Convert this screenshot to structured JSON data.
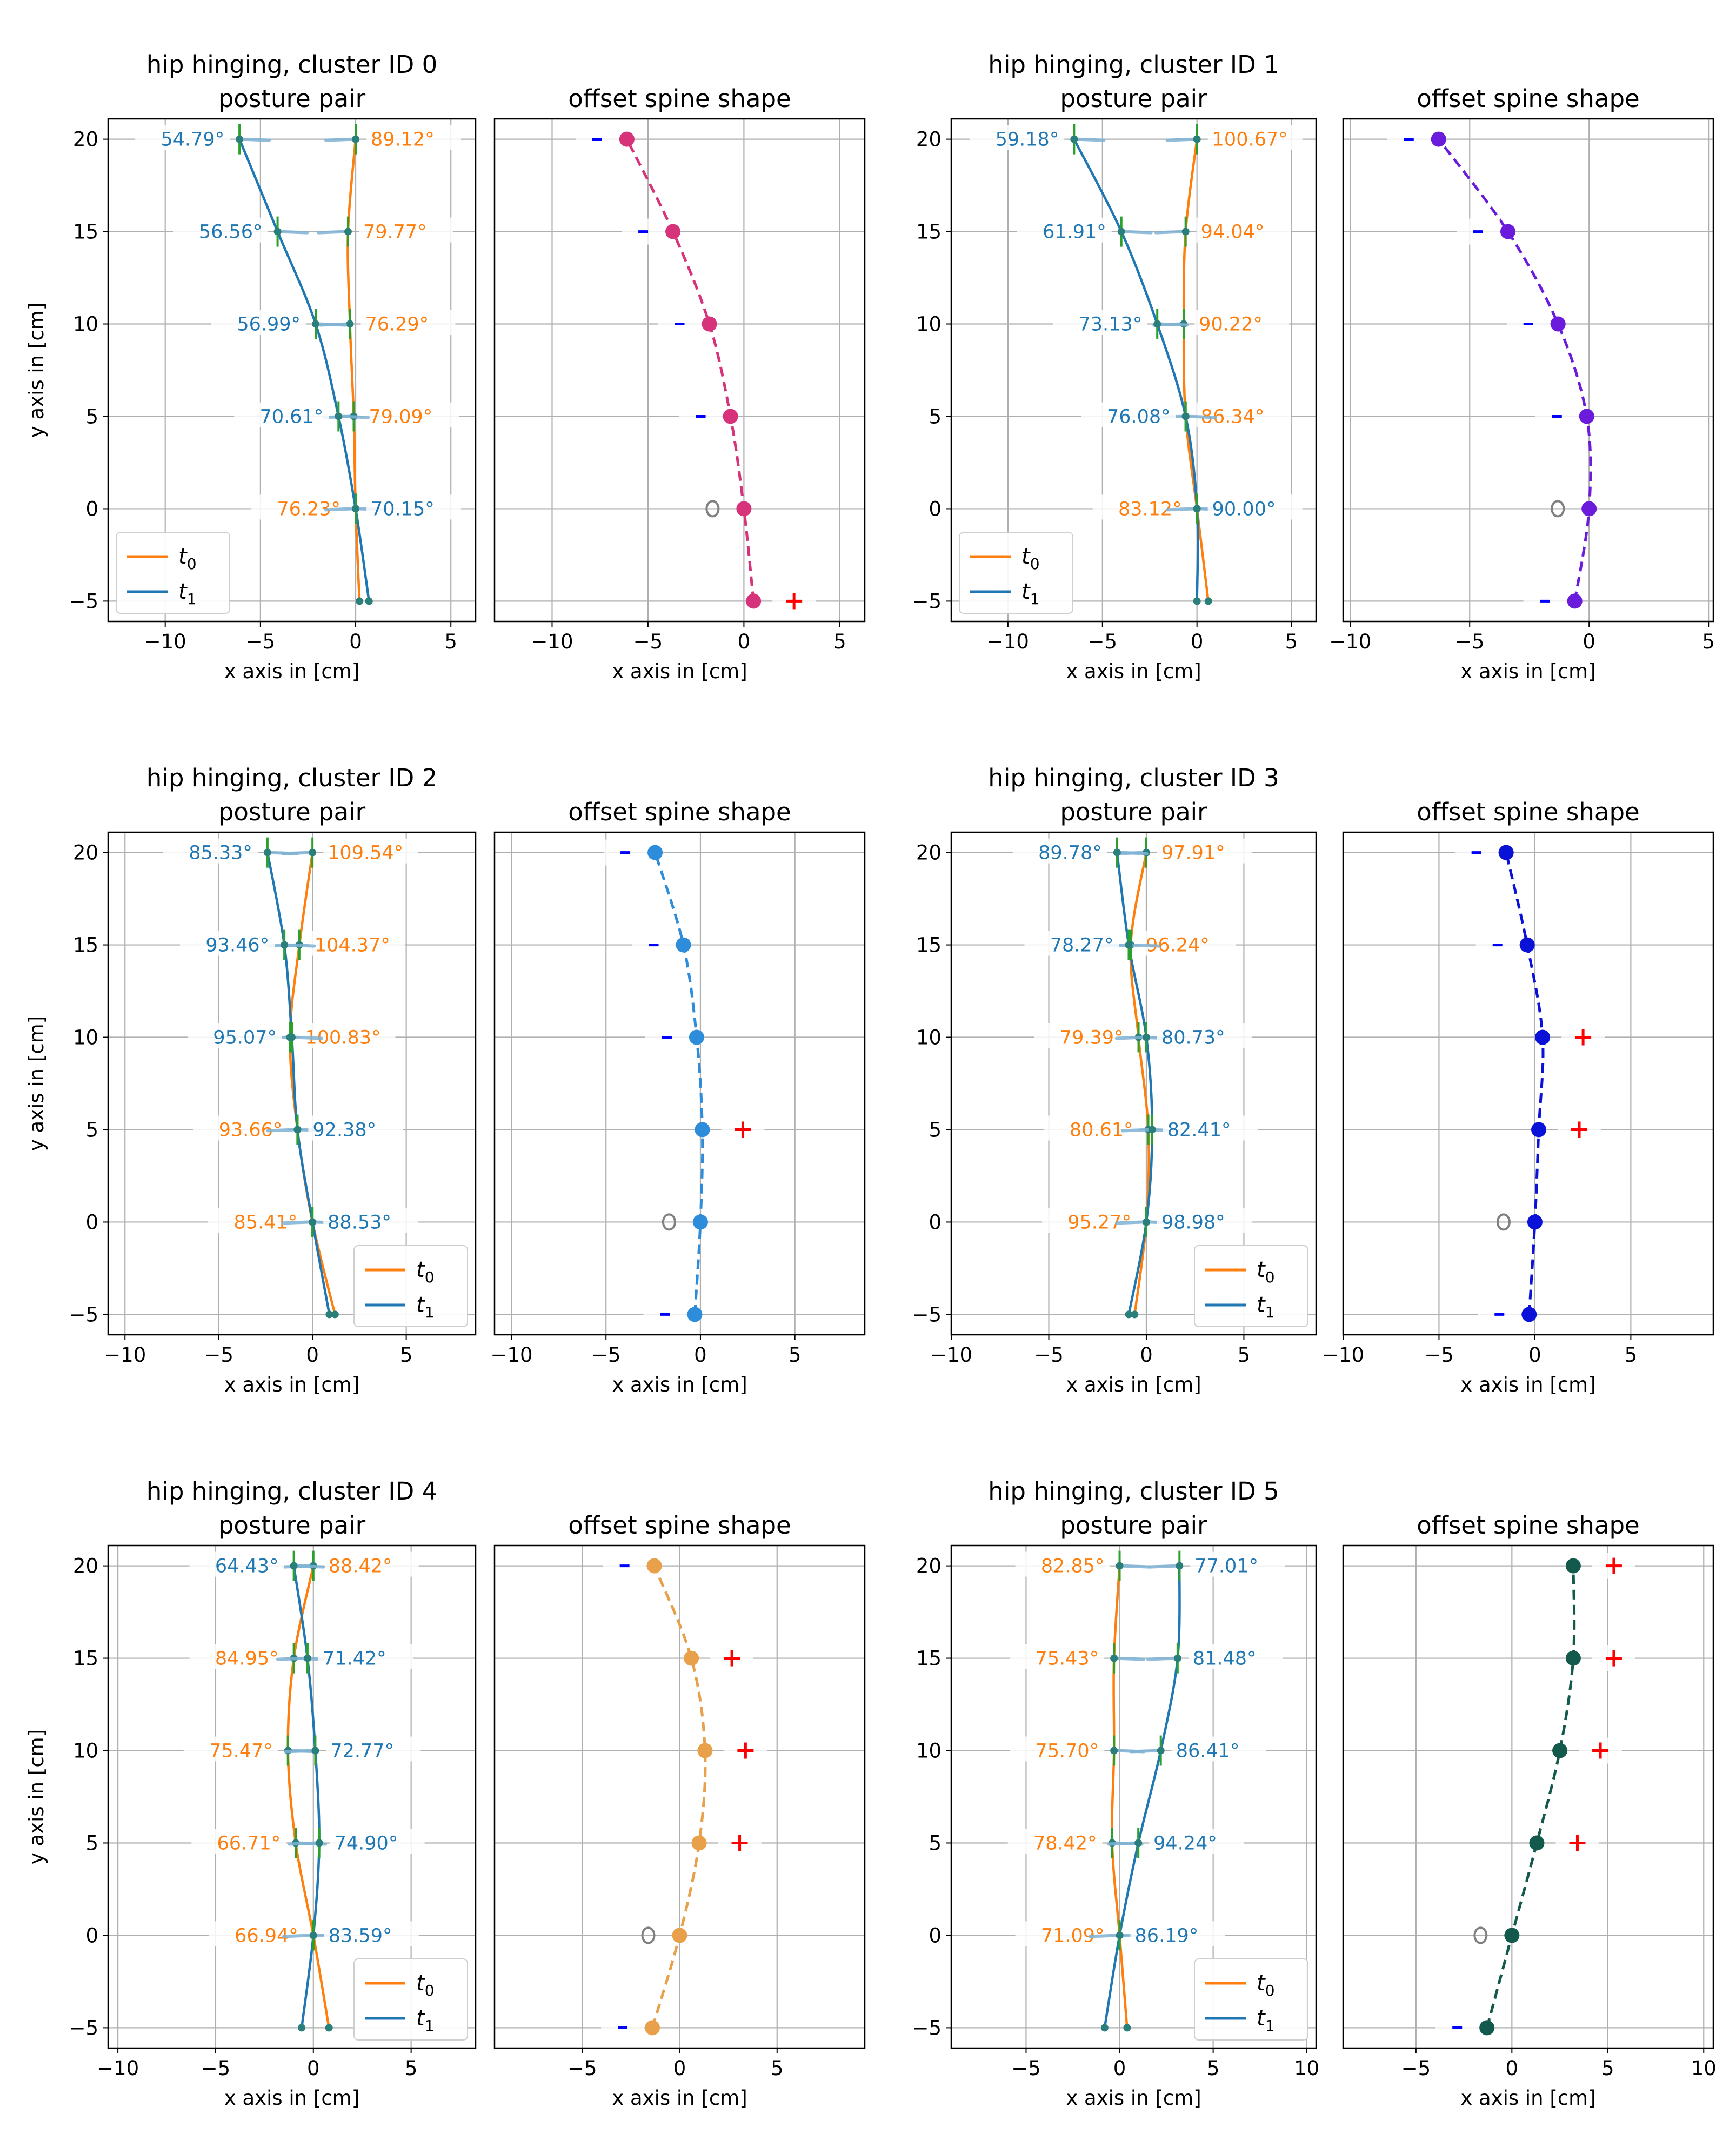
{
  "figure": {
    "pp_subtitle": "posture pair",
    "os_subtitle": "offset spine shape",
    "xlabel": "x axis in [cm]",
    "ylabel": "y axis in [cm]",
    "legend_t0": "t",
    "legend_t0_sub": "0",
    "legend_t1": "t",
    "legend_t1_sub": "1",
    "colors": {
      "t0": "#ff7f0e",
      "t1": "#1f77b4",
      "mid": "#2ca02c",
      "plus": "#ff0000",
      "minus": "#0000ff",
      "origin": "#808080"
    }
  },
  "chart_data": [
    {
      "type": "line",
      "title": "hip hinging, cluster ID 0",
      "pp_xlim": [
        -13,
        6.3
      ],
      "pp_xticks": [
        -10,
        -5,
        0,
        5
      ],
      "os_xlim": [
        -13,
        6.3
      ],
      "os_xticks": [
        -10,
        -5,
        0,
        5
      ],
      "ylim": [
        -6.1,
        21.1
      ],
      "yticks": [
        -5,
        0,
        5,
        10,
        15,
        20
      ],
      "y": [
        -5,
        0,
        5,
        10,
        15,
        20
      ],
      "t0_x": [
        0.2,
        0.0,
        -0.1,
        -0.3,
        -0.4,
        0.0
      ],
      "t1_x": [
        0.7,
        0.0,
        -0.9,
        -2.1,
        -4.1,
        -6.1
      ],
      "t0_angles": [
        "",
        "76.23°",
        "79.09°",
        "76.29°",
        "79.77°",
        "89.12°"
      ],
      "t1_angles": [
        "",
        "70.15°",
        "70.61°",
        "56.99°",
        "56.56°",
        "54.79°"
      ],
      "t0_label_side": [
        "right",
        "left",
        "right",
        "right",
        "right",
        "right"
      ],
      "t1_label_side": [
        "left",
        "right",
        "left",
        "left",
        "left",
        "left"
      ],
      "legend_pos": "lower-left",
      "offset_x": [
        0.5,
        0.0,
        -0.7,
        -1.8,
        -3.7,
        -6.1
      ],
      "offset_color": "#d6337a",
      "offset_marks": [
        "+",
        "o",
        "-",
        "-",
        "-",
        "-"
      ]
    },
    {
      "type": "line",
      "title": "hip hinging, cluster ID 1",
      "pp_xlim": [
        -13,
        6.3
      ],
      "pp_xticks": [
        -10,
        -5,
        0,
        5
      ],
      "os_xlim": [
        -10.3,
        5.2
      ],
      "os_xticks": [
        -10,
        -5,
        0,
        5
      ],
      "ylim": [
        -6.1,
        21.1
      ],
      "yticks": [
        -5,
        0,
        5,
        10,
        15,
        20
      ],
      "y": [
        -5,
        0,
        5,
        10,
        15,
        20
      ],
      "t0_x": [
        0.6,
        0.0,
        -0.6,
        -0.7,
        -0.6,
        0.0
      ],
      "t1_x": [
        0.0,
        0.0,
        -0.6,
        -2.1,
        -4.0,
        -6.5
      ],
      "t0_angles": [
        "",
        "83.12°",
        "86.34°",
        "90.22°",
        "94.04°",
        "100.67°"
      ],
      "t1_angles": [
        "",
        "90.00°",
        "76.08°",
        "73.13°",
        "61.91°",
        "59.18°"
      ],
      "t0_label_side": [
        "right",
        "left",
        "right",
        "right",
        "right",
        "right"
      ],
      "t1_label_side": [
        "left",
        "right",
        "left",
        "left",
        "left",
        "left"
      ],
      "legend_pos": "lower-left",
      "offset_x": [
        -0.6,
        0.0,
        -0.1,
        -1.3,
        -3.4,
        -6.3
      ],
      "offset_color": "#6a1bdb",
      "offset_marks": [
        "-",
        "o",
        "-",
        "-",
        "-",
        "-"
      ]
    },
    {
      "type": "line",
      "title": "hip hinging, cluster ID 2",
      "pp_xlim": [
        -10.9,
        8.7
      ],
      "pp_xticks": [
        -10,
        -5,
        0,
        5
      ],
      "os_xlim": [
        -10.9,
        8.7
      ],
      "os_xticks": [
        -10,
        -5,
        0,
        5
      ],
      "ylim": [
        -6.1,
        21.1
      ],
      "yticks": [
        -5,
        0,
        5,
        10,
        15,
        20
      ],
      "y": [
        -5,
        0,
        5,
        10,
        15,
        20
      ],
      "t0_x": [
        1.2,
        0.0,
        -0.8,
        -1.2,
        -0.7,
        0.0
      ],
      "t1_x": [
        0.9,
        0.0,
        -0.8,
        -1.1,
        -1.5,
        -2.4
      ],
      "t0_angles": [
        "",
        "85.41°",
        "93.66°",
        "100.83°",
        "104.37°",
        "109.54°"
      ],
      "t1_angles": [
        "",
        "88.53°",
        "92.38°",
        "95.07°",
        "93.46°",
        "85.33°"
      ],
      "t0_label_side": [
        "right",
        "left",
        "left",
        "right",
        "right",
        "right"
      ],
      "t1_label_side": [
        "left",
        "right",
        "right",
        "left",
        "left",
        "left"
      ],
      "legend_pos": "lower-right",
      "offset_x": [
        -0.3,
        0.0,
        0.1,
        -0.2,
        -0.9,
        -2.4
      ],
      "offset_color": "#2e8ddb",
      "offset_marks": [
        "-",
        "o",
        "+",
        "-",
        "-",
        "-"
      ]
    },
    {
      "type": "line",
      "title": "hip hinging, cluster ID 3",
      "pp_xlim": [
        -10,
        8.7
      ],
      "pp_xticks": [
        -10,
        -5,
        0,
        5
      ],
      "os_xlim": [
        -10,
        9.3
      ],
      "os_xticks": [
        -10,
        -5,
        0,
        5
      ],
      "ylim": [
        -6.1,
        21.1
      ],
      "yticks": [
        -5,
        0,
        5,
        10,
        15,
        20
      ],
      "y": [
        -5,
        0,
        5,
        10,
        15,
        20
      ],
      "t0_x": [
        -0.6,
        0.0,
        0.1,
        -0.4,
        -0.8,
        0.0
      ],
      "t1_x": [
        -0.9,
        0.0,
        0.3,
        0.0,
        -0.9,
        -1.5
      ],
      "t0_angles": [
        "",
        "95.27°",
        "80.61°",
        "79.39°",
        "96.24°",
        "97.91°"
      ],
      "t1_angles": [
        "",
        "98.98°",
        "82.41°",
        "80.73°",
        "78.27°",
        "89.78°"
      ],
      "t0_label_side": [
        "right",
        "left",
        "left",
        "left",
        "right",
        "right"
      ],
      "t1_label_side": [
        "left",
        "right",
        "right",
        "right",
        "left",
        "left"
      ],
      "legend_pos": "lower-right",
      "offset_x": [
        -0.3,
        0.0,
        0.2,
        0.4,
        -0.4,
        -1.5
      ],
      "offset_color": "#0a12d8",
      "offset_marks": [
        "-",
        "o",
        "+",
        "+",
        "-",
        "-"
      ]
    },
    {
      "type": "line",
      "title": "hip hinging, cluster ID 4",
      "pp_xlim": [
        -10.5,
        8.3
      ],
      "pp_xticks": [
        -10,
        -5,
        0,
        5
      ],
      "os_xlim": [
        -9.5,
        9.5
      ],
      "os_xticks": [
        -5,
        0,
        5
      ],
      "ylim": [
        -6.1,
        21.1
      ],
      "yticks": [
        -5,
        0,
        5,
        10,
        15,
        20
      ],
      "y": [
        -5,
        0,
        5,
        10,
        15,
        20
      ],
      "t0_x": [
        0.8,
        0.0,
        -0.9,
        -1.3,
        -1.0,
        0.0
      ],
      "t1_x": [
        -0.6,
        0.0,
        0.3,
        0.1,
        -0.3,
        -1.0
      ],
      "t0_angles": [
        "",
        "66.94°",
        "66.71°",
        "75.47°",
        "84.95°",
        "88.42°"
      ],
      "t1_angles": [
        "",
        "83.59°",
        "74.90°",
        "72.77°",
        "71.42°",
        "64.43°"
      ],
      "t0_label_side": [
        "right",
        "left",
        "left",
        "left",
        "left",
        "right"
      ],
      "t1_label_side": [
        "left",
        "right",
        "right",
        "right",
        "right",
        "left"
      ],
      "legend_pos": "lower-right",
      "offset_x": [
        -1.4,
        0.0,
        1.0,
        1.3,
        0.6,
        -1.3
      ],
      "offset_color": "#e8a04a",
      "offset_marks": [
        "-",
        "o",
        "+",
        "+",
        "+",
        "-"
      ]
    },
    {
      "type": "line",
      "title": "hip hinging, cluster ID 5",
      "pp_xlim": [
        -9,
        10.5
      ],
      "pp_xticks": [
        -5,
        0,
        5,
        10
      ],
      "os_xlim": [
        -8.8,
        10.5
      ],
      "os_xticks": [
        -5,
        0,
        5,
        10
      ],
      "ylim": [
        -6.1,
        21.1
      ],
      "yticks": [
        -5,
        0,
        5,
        10,
        15,
        20
      ],
      "y": [
        -5,
        0,
        5,
        10,
        15,
        20
      ],
      "t0_x": [
        0.4,
        0.0,
        -0.4,
        -0.3,
        -0.3,
        0.0
      ],
      "t1_x": [
        -0.8,
        0.0,
        1.0,
        2.2,
        3.1,
        3.2
      ],
      "t0_angles": [
        "",
        "71.09°",
        "78.42°",
        "75.70°",
        "75.43°",
        "82.85°"
      ],
      "t1_angles": [
        "",
        "86.19°",
        "94.24°",
        "86.41°",
        "81.48°",
        "77.01°"
      ],
      "t0_label_side": [
        "right",
        "left",
        "left",
        "left",
        "left",
        "left"
      ],
      "t1_label_side": [
        "left",
        "right",
        "right",
        "right",
        "right",
        "right"
      ],
      "legend_pos": "lower-right",
      "offset_x": [
        -1.3,
        0.0,
        1.3,
        2.5,
        3.2,
        3.2
      ],
      "offset_color": "#145a4c",
      "offset_marks": [
        "-",
        "o",
        "+",
        "+",
        "+",
        "+"
      ]
    }
  ]
}
